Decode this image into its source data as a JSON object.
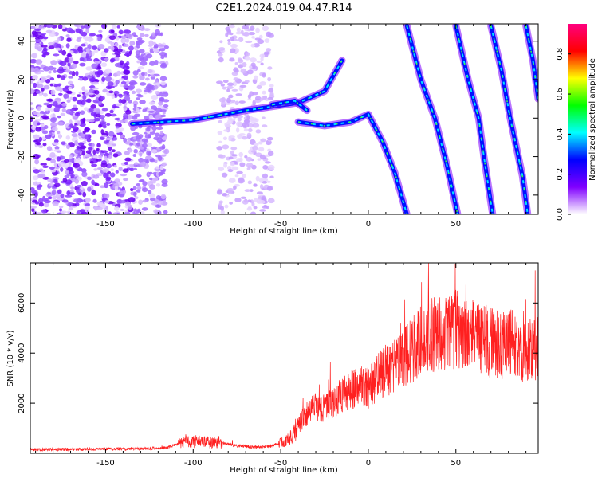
{
  "chart_data": [
    {
      "type": "heatmap",
      "title": "C2E1.2024.019.04.47.R14",
      "xlabel": "Height of straight line (km)",
      "ylabel": "Frequency (Hz)",
      "xlim": [
        -193,
        97
      ],
      "ylim": [
        -50,
        49
      ],
      "x_ticks": [
        -150,
        -100,
        -50,
        0,
        50
      ],
      "y_ticks": [
        -40,
        -20,
        0,
        20,
        40
      ],
      "colorbar": {
        "label": "Normalized spectral amplitude",
        "range": [
          0,
          0.95
        ],
        "ticks": [
          0.0,
          0.2,
          0.4,
          0.6,
          0.8
        ],
        "tick_labels": [
          "0.0",
          "0.2",
          "0.4",
          "0.6",
          "0.8"
        ],
        "colors": [
          "#ffffff",
          "#8000ff",
          "#0000ff",
          "#00ffff",
          "#00ff00",
          "#ffff00",
          "#ff0000",
          "#ff0080"
        ]
      },
      "noise_regions": [
        {
          "x": [
            -193,
            -115
          ],
          "y": [
            -50,
            49
          ],
          "density": "high"
        },
        {
          "x": [
            -85,
            -55
          ],
          "y": [
            -50,
            49
          ],
          "density": "medium"
        }
      ],
      "features": [
        {
          "name": "",
          "points": [
            [
              -135,
              -3
            ],
            [
              -100,
              -1
            ],
            [
              -70,
              4
            ],
            [
              -40,
              8
            ],
            [
              -25,
              14
            ],
            [
              -15,
              30
            ]
          ]
        },
        {
          "name": "",
          "points": [
            [
              -55,
              7
            ],
            [
              -42,
              9
            ],
            [
              -35,
              4
            ]
          ]
        },
        {
          "name": "",
          "points": [
            [
              -40,
              -2
            ],
            [
              -25,
              -4
            ],
            [
              -10,
              -2
            ],
            [
              0,
              2
            ],
            [
              8,
              -12
            ],
            [
              15,
              -28
            ],
            [
              22,
              -50
            ]
          ]
        },
        {
          "name": "",
          "points": [
            [
              22,
              48
            ],
            [
              30,
              20
            ],
            [
              38,
              0
            ],
            [
              45,
              -25
            ],
            [
              51,
              -50
            ]
          ]
        },
        {
          "name": "",
          "points": [
            [
              50,
              48
            ],
            [
              57,
              20
            ],
            [
              63,
              0
            ],
            [
              66,
              -20
            ],
            [
              71,
              -50
            ]
          ]
        },
        {
          "name": "",
          "points": [
            [
              70,
              48
            ],
            [
              76,
              25
            ],
            [
              81,
              0
            ],
            [
              88,
              -30
            ],
            [
              91,
              -50
            ]
          ]
        },
        {
          "name": "",
          "points": [
            [
              90,
              48
            ],
            [
              94,
              30
            ],
            [
              97,
              10
            ]
          ]
        }
      ]
    },
    {
      "type": "line",
      "title": "",
      "xlabel": "Height of straight line (km)",
      "ylabel": "SNR (10 * v/v)",
      "xlim": [
        -193,
        97
      ],
      "ylim": [
        0,
        7600
      ],
      "x_ticks": [
        -150,
        -100,
        -50,
        0,
        50
      ],
      "y_ticks": [
        2000,
        4000,
        6000
      ],
      "color": "#ff2020",
      "series": [
        {
          "name": "",
          "x": [
            -193,
            -170,
            -150,
            -130,
            -115,
            -105,
            -95,
            -85,
            -75,
            -65,
            -55,
            -45,
            -40,
            -35,
            -30,
            -25,
            -20,
            -15,
            -10,
            -5,
            0,
            5,
            10,
            15,
            20,
            25,
            30,
            35,
            40,
            45,
            50,
            55,
            60,
            65,
            70,
            75,
            80,
            85,
            90,
            97
          ],
          "y": [
            150,
            160,
            170,
            180,
            220,
            500,
            450,
            420,
            300,
            250,
            280,
            600,
            1100,
            1600,
            1900,
            1800,
            2000,
            2300,
            2500,
            2700,
            2600,
            3000,
            3300,
            3500,
            3800,
            4100,
            4500,
            4700,
            4800,
            4700,
            5000,
            4600,
            4700,
            4500,
            4400,
            4300,
            4500,
            4200,
            4100,
            4300
          ]
        }
      ]
    }
  ]
}
